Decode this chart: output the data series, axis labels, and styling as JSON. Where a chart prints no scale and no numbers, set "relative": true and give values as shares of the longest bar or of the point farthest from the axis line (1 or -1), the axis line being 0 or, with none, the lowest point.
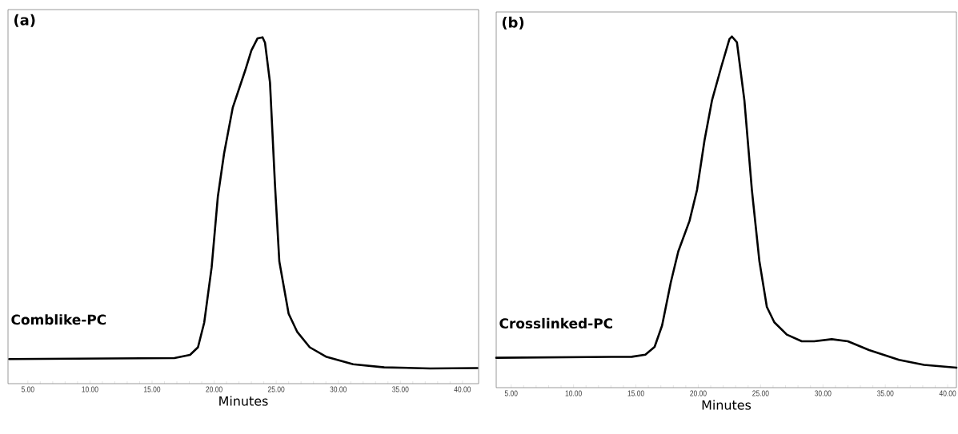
{
  "chart_data": [
    {
      "type": "line",
      "title": "(a)",
      "xlabel": "Minutes",
      "relative": true,
      "xlim": [
        3.4,
        41.3
      ],
      "xticks": [
        {
          "value": 5,
          "label": "5.00"
        },
        {
          "value": 10,
          "label": "10.00"
        },
        {
          "value": 15,
          "label": "15.00"
        },
        {
          "value": 20,
          "label": "20.00"
        },
        {
          "value": 25,
          "label": "25.00"
        },
        {
          "value": 30,
          "label": "30.00"
        },
        {
          "value": 35,
          "label": "35.00"
        },
        {
          "value": 40,
          "label": "40.00"
        }
      ],
      "series": [
        {
          "name": "Comblike-PC",
          "color": "#000000",
          "x": [
            3.5,
            16.8,
            18.06,
            18.7,
            19.2,
            19.8,
            20.3,
            20.8,
            21.5,
            22.5,
            23.0,
            23.5,
            23.9,
            24.1,
            24.5,
            24.9,
            25.25,
            26.0,
            26.7,
            27.7,
            29.0,
            31.2,
            33.7,
            37.4,
            41.2
          ],
          "values": [
            0.071,
            0.074,
            0.083,
            0.105,
            0.176,
            0.336,
            0.54,
            0.664,
            0.797,
            0.904,
            0.962,
            0.997,
            1.0,
            0.984,
            0.869,
            0.575,
            0.353,
            0.202,
            0.149,
            0.105,
            0.078,
            0.056,
            0.047,
            0.044,
            0.045
          ]
        }
      ]
    },
    {
      "type": "line",
      "title": "(b)",
      "xlabel": "Minutes",
      "relative": true,
      "xlim": [
        3.8,
        40.7
      ],
      "xticks": [
        {
          "value": 5,
          "label": "5.00"
        },
        {
          "value": 10,
          "label": "10.00"
        },
        {
          "value": 15,
          "label": "15.00"
        },
        {
          "value": 20,
          "label": "20.00"
        },
        {
          "value": 25,
          "label": "25.00"
        },
        {
          "value": 30,
          "label": "30.00"
        },
        {
          "value": 35,
          "label": "35.00"
        },
        {
          "value": 40,
          "label": "40.00"
        }
      ],
      "series": [
        {
          "name": "Crosslinked-PC",
          "color": "#000000",
          "x": [
            3.8,
            14.67,
            15.76,
            16.5,
            17.1,
            17.8,
            18.4,
            19.3,
            19.9,
            20.5,
            21.1,
            21.85,
            22.5,
            22.7,
            23.1,
            23.7,
            24.3,
            24.9,
            25.5,
            26.1,
            27.1,
            28.3,
            29.3,
            30.7,
            32.0,
            33.7,
            36.1,
            38.1,
            40.7
          ],
          "values": [
            0.085,
            0.088,
            0.094,
            0.116,
            0.177,
            0.3,
            0.388,
            0.475,
            0.563,
            0.704,
            0.818,
            0.914,
            0.993,
            1.0,
            0.984,
            0.818,
            0.563,
            0.361,
            0.23,
            0.186,
            0.151,
            0.132,
            0.132,
            0.138,
            0.132,
            0.107,
            0.079,
            0.065,
            0.057
          ]
        }
      ]
    }
  ]
}
